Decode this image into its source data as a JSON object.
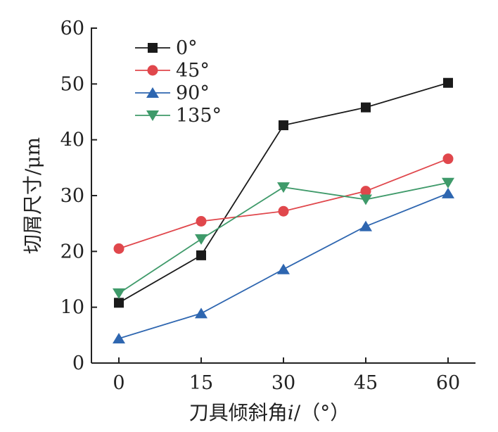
{
  "chart_data": {
    "type": "line",
    "title": "",
    "xlabel_main": "刀具倾斜角",
    "xlabel_var": "i",
    "xlabel_unit": "/（°）",
    "ylabel": "切屑尺寸/μm",
    "x": [
      0,
      15,
      30,
      45,
      60
    ],
    "xticks": [
      "0",
      "15",
      "30",
      "45",
      "60"
    ],
    "yticks": [
      "0",
      "10",
      "20",
      "30",
      "40",
      "50",
      "60"
    ],
    "xlim": [
      -5,
      65
    ],
    "ylim": [
      0,
      60
    ],
    "grid": false,
    "legend_position": "top-left",
    "series": [
      {
        "name": "0°",
        "color": "#1a1a1a",
        "marker": "square",
        "values": [
          10.8,
          19.3,
          42.6,
          45.8,
          50.2
        ]
      },
      {
        "name": "45°",
        "color": "#e0474c",
        "marker": "circle",
        "values": [
          20.5,
          25.4,
          27.2,
          30.8,
          36.6
        ]
      },
      {
        "name": "90°",
        "color": "#2e66b0",
        "marker": "triangle-up",
        "values": [
          4.4,
          8.9,
          16.8,
          24.5,
          30.4
        ]
      },
      {
        "name": "135°",
        "color": "#3f9a6a",
        "marker": "triangle-down",
        "values": [
          12.5,
          22.2,
          31.5,
          29.3,
          32.3
        ]
      }
    ]
  }
}
